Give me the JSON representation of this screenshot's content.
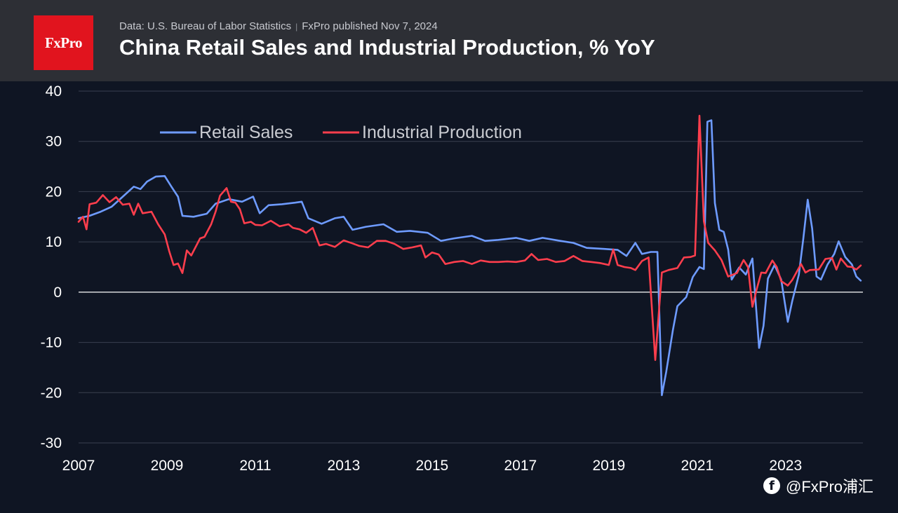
{
  "header": {
    "logo_text": "FxPro",
    "source": "Data: U.S. Bureau of Labor Statistics",
    "publisher": "FxPro published Nov 7, 2024",
    "separator": "|",
    "title": "China Retail Sales and Industrial Production, % YoY"
  },
  "watermark": {
    "icon": "f",
    "text": "@FxPro浦汇"
  },
  "chart_data": {
    "type": "line",
    "title": "China Retail Sales and Industrial Production, % YoY",
    "xlabel": "",
    "ylabel": "",
    "xlim": [
      2007.0,
      2024.75
    ],
    "ylim": [
      -30,
      40
    ],
    "grid": true,
    "legend_position": "top-left",
    "y_ticks": [
      40,
      30,
      20,
      10,
      0,
      -10,
      -20,
      -30
    ],
    "x_ticks": [
      2007,
      2009,
      2011,
      2013,
      2015,
      2017,
      2019,
      2021,
      2023
    ],
    "colors": {
      "retail": "#6e9bff",
      "industrial": "#ff3e4d",
      "zero_line": "#ffffff",
      "grid": "#3a4050"
    },
    "series": [
      {
        "name": "Retail Sales",
        "color": "#6e9bff",
        "points": [
          [
            2007.0,
            14.7
          ],
          [
            2007.25,
            15.2
          ],
          [
            2007.5,
            16.0
          ],
          [
            2007.75,
            17.0
          ],
          [
            2008.0,
            19.0
          ],
          [
            2008.25,
            21.0
          ],
          [
            2008.4,
            20.5
          ],
          [
            2008.55,
            22.0
          ],
          [
            2008.75,
            23.0
          ],
          [
            2008.95,
            23.1
          ],
          [
            2009.1,
            21.0
          ],
          [
            2009.25,
            19.0
          ],
          [
            2009.35,
            15.2
          ],
          [
            2009.6,
            15.0
          ],
          [
            2009.9,
            15.6
          ],
          [
            2010.1,
            17.6
          ],
          [
            2010.4,
            18.5
          ],
          [
            2010.7,
            18.0
          ],
          [
            2010.95,
            19.0
          ],
          [
            2011.1,
            15.7
          ],
          [
            2011.3,
            17.3
          ],
          [
            2011.6,
            17.5
          ],
          [
            2011.9,
            17.8
          ],
          [
            2012.05,
            18.0
          ],
          [
            2012.2,
            14.7
          ],
          [
            2012.5,
            13.6
          ],
          [
            2012.8,
            14.7
          ],
          [
            2013.0,
            15.0
          ],
          [
            2013.2,
            12.4
          ],
          [
            2013.5,
            13.0
          ],
          [
            2013.9,
            13.5
          ],
          [
            2014.2,
            12.0
          ],
          [
            2014.5,
            12.2
          ],
          [
            2014.9,
            11.8
          ],
          [
            2015.2,
            10.2
          ],
          [
            2015.5,
            10.7
          ],
          [
            2015.9,
            11.2
          ],
          [
            2016.2,
            10.2
          ],
          [
            2016.5,
            10.4
          ],
          [
            2016.9,
            10.8
          ],
          [
            2017.2,
            10.2
          ],
          [
            2017.5,
            10.8
          ],
          [
            2017.9,
            10.2
          ],
          [
            2018.2,
            9.8
          ],
          [
            2018.5,
            8.8
          ],
          [
            2018.9,
            8.6
          ],
          [
            2019.2,
            8.4
          ],
          [
            2019.4,
            7.2
          ],
          [
            2019.6,
            9.8
          ],
          [
            2019.75,
            7.6
          ],
          [
            2019.95,
            8.0
          ],
          [
            2020.1,
            8.0
          ],
          [
            2020.2,
            -20.5
          ],
          [
            2020.3,
            -15.8
          ],
          [
            2020.45,
            -7.5
          ],
          [
            2020.55,
            -2.8
          ],
          [
            2020.75,
            -1.0
          ],
          [
            2020.9,
            3.0
          ],
          [
            2021.05,
            5.0
          ],
          [
            2021.15,
            4.6
          ],
          [
            2021.23,
            33.9
          ],
          [
            2021.32,
            34.2
          ],
          [
            2021.4,
            17.7
          ],
          [
            2021.5,
            12.4
          ],
          [
            2021.6,
            12.0
          ],
          [
            2021.7,
            8.5
          ],
          [
            2021.78,
            2.5
          ],
          [
            2021.95,
            4.9
          ],
          [
            2022.1,
            3.5
          ],
          [
            2022.25,
            6.7
          ],
          [
            2022.4,
            -11.1
          ],
          [
            2022.5,
            -6.7
          ],
          [
            2022.6,
            2.7
          ],
          [
            2022.75,
            5.4
          ],
          [
            2022.9,
            2.5
          ],
          [
            2023.05,
            -5.9
          ],
          [
            2023.15,
            -1.8
          ],
          [
            2023.3,
            3.5
          ],
          [
            2023.4,
            10.6
          ],
          [
            2023.5,
            18.4
          ],
          [
            2023.6,
            12.7
          ],
          [
            2023.7,
            3.1
          ],
          [
            2023.8,
            2.5
          ],
          [
            2023.95,
            5.5
          ],
          [
            2024.1,
            7.6
          ],
          [
            2024.2,
            10.1
          ],
          [
            2024.35,
            7.0
          ],
          [
            2024.5,
            5.5
          ],
          [
            2024.6,
            3.1
          ],
          [
            2024.7,
            2.3
          ]
        ]
      },
      {
        "name": "Industrial Production",
        "color": "#ff3e4d",
        "points": [
          [
            2007.0,
            14.0
          ],
          [
            2007.1,
            15.0
          ],
          [
            2007.18,
            12.5
          ],
          [
            2007.25,
            17.5
          ],
          [
            2007.4,
            17.8
          ],
          [
            2007.55,
            19.3
          ],
          [
            2007.7,
            17.9
          ],
          [
            2007.85,
            18.9
          ],
          [
            2008.0,
            17.4
          ],
          [
            2008.15,
            17.6
          ],
          [
            2008.25,
            15.4
          ],
          [
            2008.35,
            17.6
          ],
          [
            2008.45,
            15.7
          ],
          [
            2008.65,
            16.0
          ],
          [
            2008.8,
            13.5
          ],
          [
            2008.95,
            11.5
          ],
          [
            2009.05,
            8.2
          ],
          [
            2009.15,
            5.4
          ],
          [
            2009.25,
            5.7
          ],
          [
            2009.35,
            3.8
          ],
          [
            2009.45,
            8.3
          ],
          [
            2009.55,
            7.3
          ],
          [
            2009.75,
            10.7
          ],
          [
            2009.85,
            11.0
          ],
          [
            2010.0,
            13.5
          ],
          [
            2010.1,
            16.0
          ],
          [
            2010.2,
            19.2
          ],
          [
            2010.35,
            20.7
          ],
          [
            2010.45,
            18.0
          ],
          [
            2010.55,
            17.8
          ],
          [
            2010.65,
            16.5
          ],
          [
            2010.75,
            13.7
          ],
          [
            2010.9,
            14.0
          ],
          [
            2011.0,
            13.4
          ],
          [
            2011.15,
            13.3
          ],
          [
            2011.35,
            14.2
          ],
          [
            2011.55,
            13.1
          ],
          [
            2011.75,
            13.5
          ],
          [
            2011.85,
            12.8
          ],
          [
            2012.0,
            12.5
          ],
          [
            2012.15,
            11.8
          ],
          [
            2012.3,
            12.8
          ],
          [
            2012.45,
            9.3
          ],
          [
            2012.6,
            9.6
          ],
          [
            2012.8,
            9.0
          ],
          [
            2013.0,
            10.3
          ],
          [
            2013.2,
            9.7
          ],
          [
            2013.35,
            9.2
          ],
          [
            2013.55,
            8.9
          ],
          [
            2013.75,
            10.2
          ],
          [
            2013.95,
            10.2
          ],
          [
            2014.15,
            9.6
          ],
          [
            2014.35,
            8.6
          ],
          [
            2014.55,
            8.9
          ],
          [
            2014.75,
            9.3
          ],
          [
            2014.85,
            6.9
          ],
          [
            2015.0,
            7.9
          ],
          [
            2015.15,
            7.5
          ],
          [
            2015.3,
            5.6
          ],
          [
            2015.5,
            6.0
          ],
          [
            2015.7,
            6.2
          ],
          [
            2015.9,
            5.6
          ],
          [
            2016.1,
            6.3
          ],
          [
            2016.3,
            6.0
          ],
          [
            2016.5,
            6.0
          ],
          [
            2016.7,
            6.1
          ],
          [
            2016.9,
            6.0
          ],
          [
            2017.1,
            6.3
          ],
          [
            2017.25,
            7.6
          ],
          [
            2017.4,
            6.4
          ],
          [
            2017.6,
            6.6
          ],
          [
            2017.8,
            6.0
          ],
          [
            2018.0,
            6.2
          ],
          [
            2018.2,
            7.2
          ],
          [
            2018.4,
            6.2
          ],
          [
            2018.6,
            6.0
          ],
          [
            2018.8,
            5.8
          ],
          [
            2019.0,
            5.4
          ],
          [
            2019.1,
            8.5
          ],
          [
            2019.2,
            5.4
          ],
          [
            2019.35,
            5.0
          ],
          [
            2019.5,
            4.8
          ],
          [
            2019.6,
            4.4
          ],
          [
            2019.75,
            6.2
          ],
          [
            2019.9,
            6.9
          ],
          [
            2020.05,
            -13.5
          ],
          [
            2020.2,
            3.9
          ],
          [
            2020.35,
            4.4
          ],
          [
            2020.55,
            4.8
          ],
          [
            2020.7,
            6.9
          ],
          [
            2020.85,
            7.0
          ],
          [
            2020.95,
            7.3
          ],
          [
            2021.05,
            35.1
          ],
          [
            2021.15,
            14.1
          ],
          [
            2021.25,
            9.8
          ],
          [
            2021.4,
            8.3
          ],
          [
            2021.55,
            6.4
          ],
          [
            2021.7,
            3.1
          ],
          [
            2021.9,
            3.8
          ],
          [
            2022.05,
            6.4
          ],
          [
            2022.15,
            5.0
          ],
          [
            2022.25,
            -2.9
          ],
          [
            2022.35,
            0.7
          ],
          [
            2022.45,
            3.9
          ],
          [
            2022.55,
            3.8
          ],
          [
            2022.7,
            6.3
          ],
          [
            2022.8,
            5.0
          ],
          [
            2022.9,
            2.2
          ],
          [
            2023.05,
            1.3
          ],
          [
            2023.15,
            2.4
          ],
          [
            2023.35,
            5.6
          ],
          [
            2023.45,
            3.9
          ],
          [
            2023.55,
            4.4
          ],
          [
            2023.75,
            4.5
          ],
          [
            2023.9,
            6.6
          ],
          [
            2024.05,
            6.8
          ],
          [
            2024.15,
            4.5
          ],
          [
            2024.25,
            6.7
          ],
          [
            2024.4,
            5.1
          ],
          [
            2024.5,
            5.0
          ],
          [
            2024.6,
            4.5
          ],
          [
            2024.7,
            5.3
          ]
        ]
      }
    ]
  }
}
